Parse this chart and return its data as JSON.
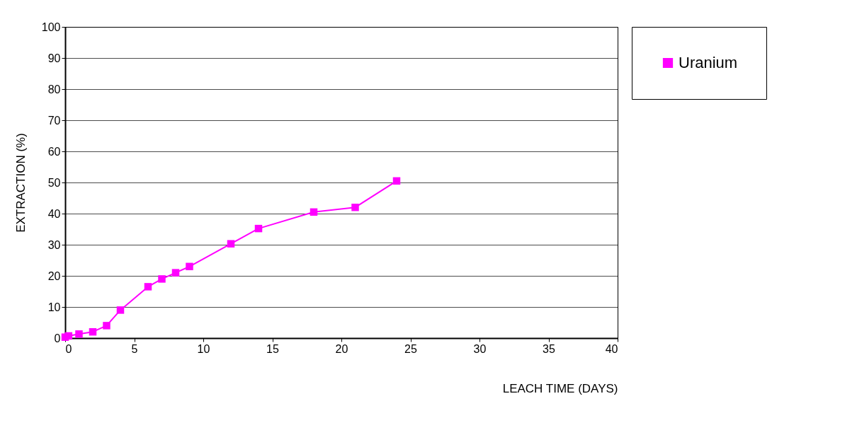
{
  "chart_data": {
    "type": "line",
    "xlabel": "LEACH TIME (DAYS)",
    "ylabel": "EXTRACTION (%)",
    "x": [
      0,
      0.25,
      1,
      2,
      3,
      4,
      6,
      7,
      8,
      9,
      12,
      14,
      18,
      21,
      24
    ],
    "series": [
      {
        "name": "Uranium",
        "color": "#ff00ff",
        "values": [
          0.3,
          0.7,
          1.3,
          2,
          4,
          9,
          16.5,
          19,
          21,
          23,
          30.3,
          35.2,
          40.5,
          42,
          50.5
        ]
      }
    ],
    "xlim": [
      0,
      40
    ],
    "xticks": [
      0,
      5,
      10,
      15,
      20,
      25,
      30,
      35,
      40
    ],
    "ylim": [
      0,
      100
    ],
    "yticks": [
      0,
      10,
      20,
      30,
      40,
      50,
      60,
      70,
      80,
      90,
      100
    ],
    "grid": "y",
    "legend": "right",
    "marker": "square",
    "line_style": "solid"
  }
}
